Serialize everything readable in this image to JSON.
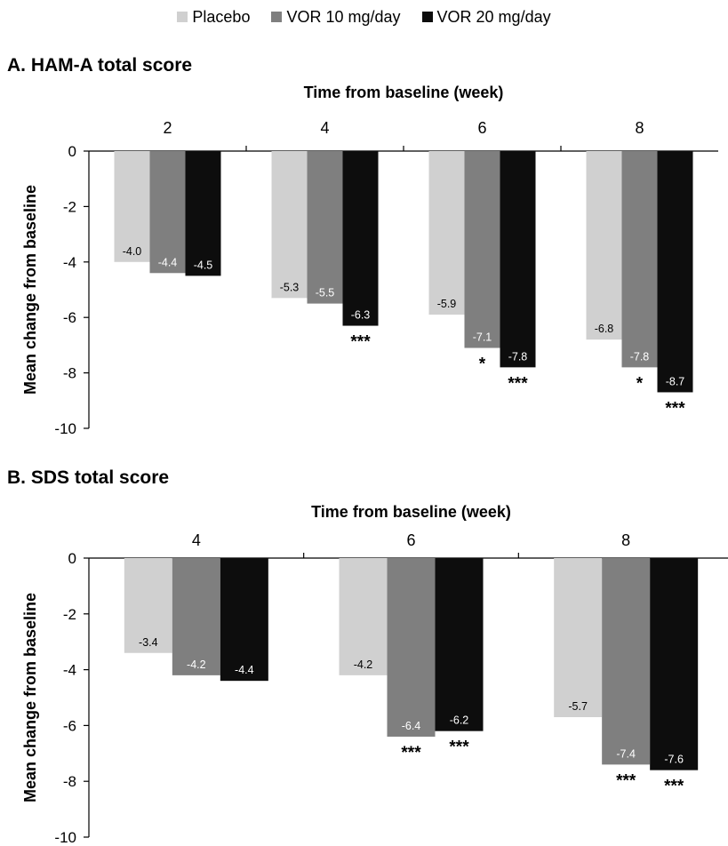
{
  "legend": {
    "items": [
      {
        "label": "Placebo",
        "color": "#d0d0d0"
      },
      {
        "label": "VOR 10 mg/day",
        "color": "#7f7f7f"
      },
      {
        "label": "VOR 20 mg/day",
        "color": "#0d0d0d"
      }
    ]
  },
  "chart_data": [
    {
      "type": "bar",
      "title": "A. HAM-A total score",
      "xlabel": "Time from baseline (week)",
      "ylabel": "Mean change from baseline",
      "ylim": [
        -10,
        0
      ],
      "yticks": [
        0,
        -2,
        -4,
        -6,
        -8,
        -10
      ],
      "categories": [
        "2",
        "4",
        "6",
        "8"
      ],
      "series": [
        {
          "name": "Placebo",
          "color": "#d0d0d0",
          "values": [
            -4.0,
            -5.3,
            -5.9,
            -6.8
          ],
          "labels": [
            "-4.0",
            "-5.3",
            "-5.9",
            "-6.8"
          ],
          "significance": [
            "",
            "",
            "",
            ""
          ]
        },
        {
          "name": "VOR 10 mg/day",
          "color": "#7f7f7f",
          "values": [
            -4.4,
            -5.5,
            -7.1,
            -7.8
          ],
          "labels": [
            "-4.4",
            "-5.5",
            "-7.1",
            "-7.8"
          ],
          "significance": [
            "",
            "",
            "*",
            "*"
          ]
        },
        {
          "name": "VOR 20 mg/day",
          "color": "#0d0d0d",
          "values": [
            -4.5,
            -6.3,
            -7.8,
            -8.7
          ],
          "labels": [
            "-4.5",
            "-6.3",
            "-7.8",
            "-8.7"
          ],
          "significance": [
            "",
            "***",
            "***",
            "***"
          ]
        }
      ]
    },
    {
      "type": "bar",
      "title": "B. SDS total score",
      "xlabel": "Time from baseline (week)",
      "ylabel": "Mean change from baseline",
      "ylim": [
        -10,
        0
      ],
      "yticks": [
        0,
        -2,
        -4,
        -6,
        -8,
        -10
      ],
      "categories": [
        "4",
        "6",
        "8"
      ],
      "series": [
        {
          "name": "Placebo",
          "color": "#d0d0d0",
          "values": [
            -3.4,
            -4.2,
            -5.7
          ],
          "labels": [
            "-3.4",
            "-4.2",
            "-5.7"
          ],
          "significance": [
            "",
            "",
            ""
          ]
        },
        {
          "name": "VOR 10 mg/day",
          "color": "#7f7f7f",
          "values": [
            -4.2,
            -6.4,
            -7.4
          ],
          "labels": [
            "-4.2",
            "-6.4",
            "-7.4"
          ],
          "significance": [
            "",
            "***",
            "***"
          ]
        },
        {
          "name": "VOR 20 mg/day",
          "color": "#0d0d0d",
          "values": [
            -4.4,
            -6.2,
            -7.6
          ],
          "labels": [
            "-4.4",
            "-6.2",
            "-7.6"
          ],
          "significance": [
            "",
            "***",
            "***"
          ]
        }
      ]
    }
  ]
}
